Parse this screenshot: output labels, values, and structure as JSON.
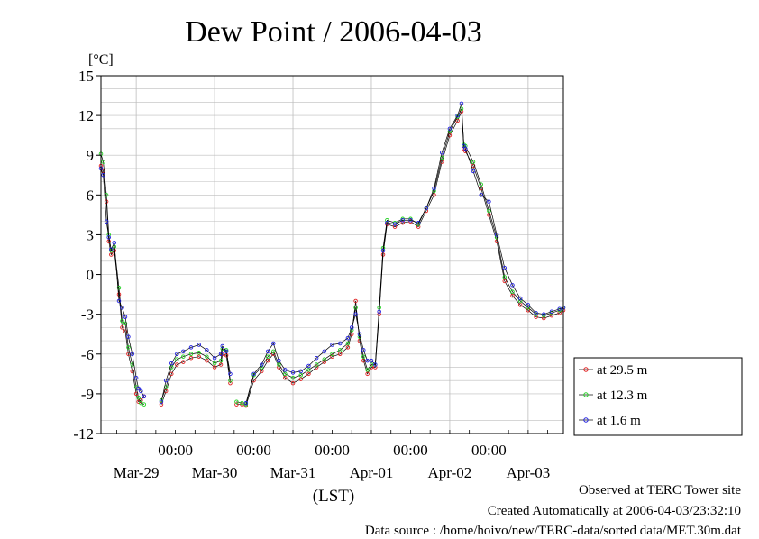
{
  "chart_data": {
    "type": "line",
    "title": "Dew Point / 2006-04-03",
    "ylabel": "[°C]",
    "xlabel": "(LST)",
    "ylim": [
      -12,
      15
    ],
    "yticks": [
      "15",
      "12",
      "9",
      "6",
      "3",
      "0",
      "-3",
      "-6",
      "-9",
      "-12"
    ],
    "x_unit": "days since Mar-28 00:00",
    "xlim": [
      0.55,
      6.45
    ],
    "time_ticks": [
      "00:00",
      "00:00",
      "00:00",
      "00:00",
      "00:00"
    ],
    "date_ticks": [
      "Mar-29",
      "Mar-30",
      "Mar-31",
      "Apr-01",
      "Apr-02",
      "Apr-03"
    ],
    "grid": true,
    "legend_position": "lower-right outside",
    "series": [
      {
        "name": "at 29.5 m",
        "color": "#e02020",
        "points": [
          [
            0.55,
            8.2
          ],
          [
            0.58,
            7.8
          ],
          [
            0.62,
            5.5
          ],
          [
            0.65,
            2.5
          ],
          [
            0.68,
            1.5
          ],
          [
            0.72,
            1.8
          ],
          [
            0.78,
            -1.5
          ],
          [
            0.82,
            -4.0
          ],
          [
            0.86,
            -4.3
          ],
          [
            0.9,
            -6.0
          ],
          [
            0.95,
            -7.3
          ],
          [
            1.0,
            -9.0
          ],
          [
            1.03,
            -9.6
          ],
          [
            1.06,
            -9.5
          ],
          [
            1.1,
            -9.2
          ],
          null,
          [
            1.32,
            -9.8
          ],
          [
            1.38,
            -8.8
          ],
          [
            1.45,
            -7.5
          ],
          [
            1.52,
            -6.8
          ],
          [
            1.6,
            -6.6
          ],
          [
            1.7,
            -6.3
          ],
          [
            1.8,
            -6.2
          ],
          [
            1.9,
            -6.5
          ],
          [
            2.0,
            -7.0
          ],
          [
            2.08,
            -6.8
          ],
          [
            2.1,
            -6.0
          ],
          [
            2.15,
            -6.1
          ],
          [
            2.2,
            -8.2
          ],
          null,
          [
            2.28,
            -9.8
          ],
          [
            2.35,
            -9.8
          ],
          null,
          [
            2.4,
            -9.9
          ],
          [
            2.5,
            -8.0
          ],
          [
            2.6,
            -7.3
          ],
          [
            2.68,
            -6.5
          ],
          [
            2.75,
            -6.0
          ],
          [
            2.82,
            -7.0
          ],
          [
            2.9,
            -7.8
          ],
          [
            3.0,
            -8.2
          ],
          [
            3.1,
            -7.9
          ],
          [
            3.2,
            -7.5
          ],
          [
            3.3,
            -7.0
          ],
          [
            3.4,
            -6.6
          ],
          [
            3.5,
            -6.2
          ],
          [
            3.6,
            -6.0
          ],
          [
            3.7,
            -5.5
          ],
          [
            3.75,
            -4.5
          ],
          [
            3.8,
            -2.0
          ],
          [
            3.85,
            -5.0
          ],
          [
            3.9,
            -6.5
          ],
          [
            3.95,
            -7.5
          ],
          [
            4.0,
            -7.0
          ],
          [
            4.05,
            -7.0
          ],
          [
            4.1,
            -3.0
          ],
          [
            4.15,
            1.5
          ],
          [
            4.2,
            3.8
          ],
          [
            4.3,
            3.6
          ],
          [
            4.4,
            3.9
          ],
          [
            4.5,
            4.0
          ],
          [
            4.6,
            3.6
          ],
          [
            4.7,
            4.8
          ],
          [
            4.8,
            6.0
          ],
          [
            4.9,
            8.5
          ],
          [
            5.0,
            10.5
          ],
          [
            5.1,
            11.6
          ],
          [
            5.15,
            12.3
          ],
          [
            5.18,
            9.5
          ],
          [
            5.2,
            9.3
          ],
          [
            5.3,
            8.2
          ],
          [
            5.4,
            6.5
          ],
          [
            5.5,
            4.5
          ],
          [
            5.6,
            2.5
          ],
          [
            5.7,
            -0.5
          ],
          [
            5.8,
            -1.6
          ],
          [
            5.9,
            -2.3
          ],
          [
            6.0,
            -2.7
          ],
          [
            6.1,
            -3.2
          ],
          [
            6.2,
            -3.3
          ],
          [
            6.3,
            -3.1
          ],
          [
            6.4,
            -2.9
          ],
          [
            6.45,
            -2.7
          ]
        ]
      },
      {
        "name": "at 12.3 m",
        "color": "#20d020",
        "points": [
          [
            0.55,
            9.1
          ],
          [
            0.58,
            8.5
          ],
          [
            0.62,
            6.0
          ],
          [
            0.65,
            3.0
          ],
          [
            0.68,
            1.8
          ],
          [
            0.72,
            2.1
          ],
          [
            0.78,
            -1.0
          ],
          [
            0.82,
            -3.5
          ],
          [
            0.86,
            -3.7
          ],
          [
            0.9,
            -5.5
          ],
          [
            0.95,
            -6.8
          ],
          [
            1.0,
            -8.5
          ],
          [
            1.03,
            -9.3
          ],
          [
            1.06,
            -9.7
          ],
          [
            1.1,
            -9.8
          ],
          null,
          [
            1.32,
            -9.5
          ],
          [
            1.38,
            -8.5
          ],
          [
            1.45,
            -7.0
          ],
          [
            1.52,
            -6.4
          ],
          [
            1.6,
            -6.2
          ],
          [
            1.7,
            -6.0
          ],
          [
            1.8,
            -5.9
          ],
          [
            1.9,
            -6.2
          ],
          [
            2.0,
            -6.7
          ],
          [
            2.08,
            -6.5
          ],
          [
            2.1,
            -5.6
          ],
          [
            2.15,
            -5.7
          ],
          [
            2.2,
            -8.0
          ],
          null,
          [
            2.28,
            -9.6
          ],
          [
            2.35,
            -9.7
          ],
          null,
          [
            2.4,
            -9.8
          ],
          [
            2.5,
            -7.6
          ],
          [
            2.6,
            -7.0
          ],
          [
            2.68,
            -6.2
          ],
          [
            2.75,
            -5.8
          ],
          [
            2.82,
            -6.8
          ],
          [
            2.9,
            -7.5
          ],
          [
            3.0,
            -7.8
          ],
          [
            3.1,
            -7.6
          ],
          [
            3.2,
            -7.2
          ],
          [
            3.3,
            -6.8
          ],
          [
            3.4,
            -6.4
          ],
          [
            3.5,
            -6.0
          ],
          [
            3.6,
            -5.7
          ],
          [
            3.7,
            -5.2
          ],
          [
            3.75,
            -4.2
          ],
          [
            3.8,
            -2.5
          ],
          [
            3.85,
            -4.7
          ],
          [
            3.9,
            -6.2
          ],
          [
            3.95,
            -7.2
          ],
          [
            4.0,
            -6.8
          ],
          [
            4.05,
            -6.8
          ],
          [
            4.1,
            -2.5
          ],
          [
            4.15,
            2.0
          ],
          [
            4.2,
            4.1
          ],
          [
            4.3,
            3.9
          ],
          [
            4.4,
            4.2
          ],
          [
            4.5,
            4.2
          ],
          [
            4.6,
            3.8
          ],
          [
            4.7,
            5.0
          ],
          [
            4.8,
            6.3
          ],
          [
            4.9,
            8.8
          ],
          [
            5.0,
            10.8
          ],
          [
            5.1,
            11.9
          ],
          [
            5.15,
            12.5
          ],
          [
            5.18,
            9.8
          ],
          [
            5.2,
            9.7
          ],
          [
            5.3,
            8.5
          ],
          [
            5.4,
            6.8
          ],
          [
            5.5,
            4.8
          ],
          [
            5.6,
            2.8
          ],
          [
            5.7,
            -0.2
          ],
          [
            5.8,
            -1.3
          ],
          [
            5.9,
            -2.0
          ],
          [
            6.0,
            -2.5
          ],
          [
            6.1,
            -3.0
          ],
          [
            6.2,
            -3.1
          ],
          [
            6.3,
            -2.9
          ],
          [
            6.4,
            -2.7
          ],
          [
            6.45,
            -2.5
          ]
        ]
      },
      {
        "name": "at 1.6 m",
        "color": "#2020e0",
        "points": [
          [
            0.55,
            8.0
          ],
          [
            0.58,
            7.5
          ],
          [
            0.62,
            4.0
          ],
          [
            0.65,
            2.8
          ],
          [
            0.68,
            1.9
          ],
          [
            0.72,
            2.4
          ],
          [
            0.78,
            -2.0
          ],
          [
            0.82,
            -2.5
          ],
          [
            0.86,
            -3.2
          ],
          [
            0.9,
            -4.7
          ],
          [
            0.95,
            -6.0
          ],
          [
            1.0,
            -7.8
          ],
          [
            1.03,
            -8.6
          ],
          [
            1.06,
            -8.8
          ],
          [
            1.1,
            -9.2
          ],
          null,
          [
            1.32,
            -9.6
          ],
          [
            1.38,
            -8.0
          ],
          [
            1.45,
            -6.7
          ],
          [
            1.52,
            -6.0
          ],
          [
            1.6,
            -5.8
          ],
          [
            1.7,
            -5.5
          ],
          [
            1.8,
            -5.3
          ],
          [
            1.9,
            -5.7
          ],
          [
            2.0,
            -6.3
          ],
          [
            2.08,
            -6.0
          ],
          [
            2.1,
            -5.4
          ],
          [
            2.15,
            -5.8
          ],
          [
            2.2,
            -7.5
          ],
          null,
          [
            2.4,
            -9.7
          ],
          [
            2.5,
            -7.5
          ],
          [
            2.6,
            -6.8
          ],
          [
            2.68,
            -5.8
          ],
          [
            2.75,
            -5.2
          ],
          [
            2.82,
            -6.5
          ],
          [
            2.9,
            -7.2
          ],
          [
            3.0,
            -7.4
          ],
          [
            3.1,
            -7.3
          ],
          [
            3.2,
            -6.9
          ],
          [
            3.3,
            -6.3
          ],
          [
            3.4,
            -5.8
          ],
          [
            3.5,
            -5.3
          ],
          [
            3.6,
            -5.2
          ],
          [
            3.7,
            -4.8
          ],
          [
            3.75,
            -4.0
          ],
          [
            3.8,
            -3.0
          ],
          [
            3.85,
            -4.5
          ],
          [
            3.9,
            -5.7
          ],
          [
            3.95,
            -6.5
          ],
          [
            4.0,
            -6.5
          ],
          [
            4.05,
            -6.8
          ],
          [
            4.1,
            -2.8
          ],
          [
            4.15,
            1.8
          ],
          [
            4.2,
            3.9
          ],
          [
            4.3,
            3.8
          ],
          [
            4.4,
            4.1
          ],
          [
            4.5,
            4.1
          ],
          [
            4.6,
            3.9
          ],
          [
            4.7,
            5.0
          ],
          [
            4.8,
            6.5
          ],
          [
            4.9,
            9.2
          ],
          [
            5.0,
            11.0
          ],
          [
            5.1,
            12.0
          ],
          [
            5.15,
            12.9
          ],
          [
            5.18,
            9.7
          ],
          [
            5.2,
            9.5
          ],
          [
            5.3,
            7.8
          ],
          [
            5.4,
            6.0
          ],
          [
            5.5,
            5.5
          ],
          [
            5.6,
            3.0
          ],
          [
            5.7,
            0.5
          ],
          [
            5.8,
            -0.8
          ],
          [
            5.9,
            -1.8
          ],
          [
            6.0,
            -2.3
          ],
          [
            6.1,
            -2.9
          ],
          [
            6.2,
            -3.0
          ],
          [
            6.3,
            -2.8
          ],
          [
            6.4,
            -2.6
          ],
          [
            6.45,
            -2.5
          ]
        ]
      }
    ]
  },
  "footer": {
    "site": "Observed at TERC Tower site",
    "created": "Created Automatically at 2006-04-03/23:32:10",
    "source": "Data source : /home/hoivo/new/TERC-data/sorted  data/MET.30m.dat"
  }
}
